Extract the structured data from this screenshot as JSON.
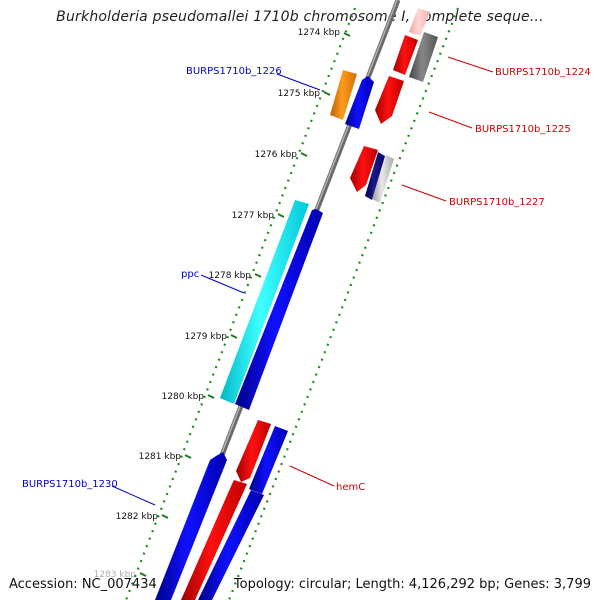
{
  "title": "Burkholderia pseudomallei 1710b chromosome I, complete seque...",
  "footer": {
    "accession": "Accession: NC_007434",
    "summary": "Topology: circular; Length: 4,126,292 bp; Genes: 3,799"
  },
  "colors": {
    "backbone": "#8a8a8a",
    "ring_dots": "#1f8a1f",
    "tick": "#1f7a1f",
    "label_blue": "#0000cc",
    "label_red": "#cc0000"
  },
  "ticks": [
    "1274 kbp",
    "1275 kbp",
    "1276 kbp",
    "1277 kbp",
    "1278 kbp",
    "1279 kbp",
    "1280 kbp",
    "1281 kbp",
    "1282 kbp",
    "1283 kbp"
  ],
  "gene_labels": [
    {
      "text": "BURPS1710b_1224",
      "color": "#cc0000"
    },
    {
      "text": "BURPS1710b_1226",
      "color": "#0000cc"
    },
    {
      "text": "BURPS1710b_1225",
      "color": "#cc0000"
    },
    {
      "text": "BURPS1710b_1227",
      "color": "#cc0000"
    },
    {
      "text": "ppc",
      "color": "#0000cc"
    },
    {
      "text": "hemC",
      "color": "#cc0000"
    },
    {
      "text": "BURPS1710b_1230",
      "color": "#0000cc"
    }
  ]
}
